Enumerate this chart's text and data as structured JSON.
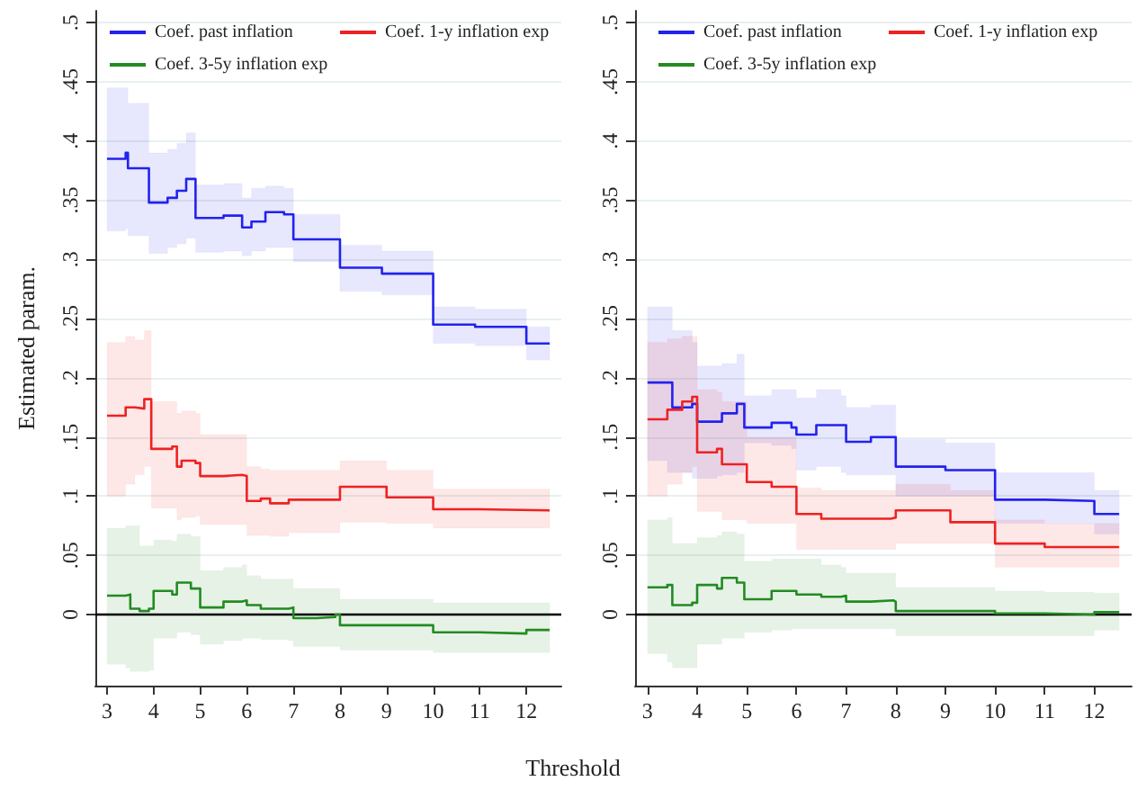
{
  "chart_data": [
    {
      "type": "step",
      "xlabel": "Threshold",
      "ylabel": "Estimated param.",
      "xlim": [
        2.75,
        12.75
      ],
      "ylim": [
        -0.06,
        0.51
      ],
      "xticks": [
        3,
        4,
        5,
        6,
        7,
        8,
        9,
        10,
        11,
        12
      ],
      "yticks": [
        0,
        {
          "value": 0.05,
          "label": ".05"
        },
        {
          "value": 0.1,
          "label": ".1"
        },
        {
          "value": 0.15,
          "label": ".15"
        },
        {
          "value": 0.2,
          "label": ".2"
        },
        {
          "value": 0.25,
          "label": ".25"
        },
        {
          "value": 0.3,
          "label": ".3"
        },
        {
          "value": 0.35,
          "label": ".35"
        },
        {
          "value": 0.4,
          "label": ".4"
        },
        {
          "value": 0.45,
          "label": ".45"
        },
        {
          "value": 0.5,
          "label": ".5"
        }
      ],
      "grid": "y",
      "legend": "top",
      "marker": "none",
      "ref_lines": [
        {
          "axis": "y",
          "value": 0,
          "color": "#000000"
        }
      ],
      "series": [
        {
          "name": "Coef. past inflation",
          "color": "#2222ee",
          "x": [
            3,
            3.4,
            3.45,
            3.8,
            3.9,
            4.3,
            4.5,
            4.7,
            4.9,
            5.5,
            5.9,
            6.1,
            6.4,
            6.8,
            7,
            8,
            8.9,
            10,
            10.9,
            12,
            12.5
          ],
          "values": [
            0.385,
            0.39,
            0.377,
            0.377,
            0.348,
            0.352,
            0.358,
            0.368,
            0.335,
            0.337,
            0.327,
            0.332,
            0.34,
            0.338,
            0.317,
            0.293,
            0.288,
            0.245,
            0.243,
            0.229,
            0.229
          ],
          "lower": [
            0.324,
            0.326,
            0.32,
            0.32,
            0.305,
            0.31,
            0.313,
            0.318,
            0.306,
            0.307,
            0.303,
            0.307,
            0.31,
            0.31,
            0.298,
            0.273,
            0.27,
            0.229,
            0.227,
            0.215,
            0.215
          ],
          "upper": [
            0.445,
            0.445,
            0.432,
            0.432,
            0.39,
            0.393,
            0.398,
            0.407,
            0.363,
            0.364,
            0.352,
            0.36,
            0.362,
            0.36,
            0.338,
            0.312,
            0.307,
            0.26,
            0.258,
            0.243,
            0.243
          ]
        },
        {
          "name": "Coef. 1-y inflation exp",
          "color": "#ee2222",
          "x": [
            3,
            3.4,
            3.6,
            3.8,
            3.95,
            4.4,
            4.5,
            4.6,
            4.9,
            5,
            5.5,
            5.9,
            6,
            6.3,
            6.5,
            6.9,
            8,
            8.9,
            9,
            10,
            11,
            12.5
          ],
          "values": [
            0.168,
            0.175,
            0.174,
            0.182,
            0.14,
            0.142,
            0.125,
            0.13,
            0.128,
            0.117,
            0.118,
            0.117,
            0.096,
            0.098,
            0.094,
            0.097,
            0.108,
            0.108,
            0.099,
            0.089,
            0.088,
            0.089
          ],
          "lower": [
            0.1,
            0.11,
            0.118,
            0.125,
            0.09,
            0.09,
            0.08,
            0.082,
            0.083,
            0.076,
            0.076,
            0.076,
            0.067,
            0.067,
            0.066,
            0.069,
            0.078,
            0.078,
            0.077,
            0.073,
            0.073,
            0.073
          ],
          "upper": [
            0.23,
            0.235,
            0.232,
            0.24,
            0.18,
            0.18,
            0.17,
            0.172,
            0.17,
            0.152,
            0.152,
            0.152,
            0.125,
            0.123,
            0.122,
            0.122,
            0.13,
            0.13,
            0.122,
            0.106,
            0.106,
            0.106
          ]
        },
        {
          "name": "Coef. 3-5y inflation exp",
          "color": "#228b22",
          "x": [
            3,
            3.4,
            3.5,
            3.7,
            3.9,
            4,
            4.4,
            4.5,
            4.8,
            5,
            5.5,
            5.9,
            6,
            6.3,
            6.9,
            7,
            7.5,
            7.9,
            8,
            10,
            11,
            12,
            12.5
          ],
          "values": [
            0.016,
            0.017,
            0.005,
            0.003,
            0.005,
            0.02,
            0.017,
            0.027,
            0.022,
            0.006,
            0.011,
            0.012,
            0.008,
            0.005,
            0.006,
            -0.003,
            -0.002,
            0,
            -0.009,
            -0.015,
            -0.016,
            -0.013,
            -0.013
          ],
          "lower": [
            -0.042,
            -0.045,
            -0.048,
            -0.048,
            -0.047,
            -0.02,
            -0.02,
            -0.015,
            -0.017,
            -0.025,
            -0.022,
            -0.02,
            -0.02,
            -0.021,
            -0.022,
            -0.027,
            -0.027,
            -0.027,
            -0.03,
            -0.032,
            -0.032,
            -0.032,
            -0.032
          ],
          "upper": [
            0.073,
            0.075,
            0.075,
            0.058,
            0.058,
            0.063,
            0.062,
            0.068,
            0.066,
            0.037,
            0.04,
            0.042,
            0.033,
            0.03,
            0.03,
            0.022,
            0.022,
            0.022,
            0.013,
            0.01,
            0.01,
            0.01,
            0.01
          ]
        }
      ]
    },
    {
      "type": "step",
      "xlim": [
        2.75,
        12.75
      ],
      "ylim": [
        -0.06,
        0.51
      ],
      "xticks": [
        3,
        4,
        5,
        6,
        7,
        8,
        9,
        10,
        11,
        12
      ],
      "yticks": [
        0,
        {
          "value": 0.05,
          "label": ".05"
        },
        {
          "value": 0.1,
          "label": ".1"
        },
        {
          "value": 0.15,
          "label": ".15"
        },
        {
          "value": 0.2,
          "label": ".2"
        },
        {
          "value": 0.25,
          "label": ".25"
        },
        {
          "value": 0.3,
          "label": ".3"
        },
        {
          "value": 0.35,
          "label": ".35"
        },
        {
          "value": 0.4,
          "label": ".4"
        },
        {
          "value": 0.45,
          "label": ".45"
        },
        {
          "value": 0.5,
          "label": ".5"
        }
      ],
      "grid": "y",
      "legend": "top",
      "marker": "none",
      "ref_lines": [
        {
          "axis": "y",
          "value": 0,
          "color": "#000000"
        }
      ],
      "series": [
        {
          "name": "Coef. past inflation",
          "color": "#2222ee",
          "x": [
            3,
            3.4,
            3.5,
            3.9,
            4,
            4.4,
            4.5,
            4.8,
            4.95,
            5.5,
            5.9,
            6,
            6.4,
            6.9,
            7,
            7.5,
            7.95,
            8,
            9,
            10,
            11,
            12,
            12.5
          ],
          "values": [
            0.196,
            0.196,
            0.175,
            0.178,
            0.163,
            0.163,
            0.17,
            0.178,
            0.158,
            0.162,
            0.158,
            0.152,
            0.16,
            0.16,
            0.146,
            0.15,
            0.15,
            0.125,
            0.122,
            0.097,
            0.096,
            0.085,
            0.084
          ],
          "lower": [
            0.13,
            0.12,
            0.12,
            0.115,
            0.115,
            0.117,
            0.118,
            0.12,
            0.145,
            0.143,
            0.14,
            0.122,
            0.125,
            0.12,
            0.118,
            0.118,
            0.118,
            0.1,
            0.1,
            0.077,
            0.077,
            0.068,
            0.068
          ],
          "upper": [
            0.26,
            0.26,
            0.24,
            0.23,
            0.21,
            0.21,
            0.212,
            0.22,
            0.185,
            0.19,
            0.19,
            0.183,
            0.19,
            0.185,
            0.175,
            0.177,
            0.177,
            0.148,
            0.145,
            0.12,
            0.12,
            0.105,
            0.103
          ]
        },
        {
          "name": "Coef. 1-y inflation exp",
          "color": "#ee2222",
          "x": [
            3,
            3.4,
            3.7,
            3.9,
            4,
            4.4,
            4.5,
            4.9,
            5,
            5.5,
            5.9,
            6,
            6.5,
            7,
            7.9,
            8,
            9,
            9.1,
            10,
            11,
            12.5
          ],
          "values": [
            0.165,
            0.173,
            0.18,
            0.184,
            0.137,
            0.14,
            0.127,
            0.127,
            0.112,
            0.108,
            0.108,
            0.085,
            0.081,
            0.081,
            0.082,
            0.088,
            0.088,
            0.078,
            0.06,
            0.057,
            0.057
          ],
          "lower": [
            0.1,
            0.11,
            0.12,
            0.125,
            0.087,
            0.087,
            0.08,
            0.08,
            0.077,
            0.077,
            0.077,
            0.055,
            0.055,
            0.055,
            0.055,
            0.06,
            0.06,
            0.06,
            0.04,
            0.04,
            0.04
          ],
          "upper": [
            0.23,
            0.233,
            0.235,
            0.235,
            0.19,
            0.188,
            0.18,
            0.18,
            0.15,
            0.15,
            0.15,
            0.107,
            0.105,
            0.105,
            0.105,
            0.11,
            0.11,
            0.105,
            0.08,
            0.077,
            0.075
          ]
        },
        {
          "name": "Coef. 3-5y inflation exp",
          "color": "#228b22",
          "x": [
            3,
            3.4,
            3.5,
            3.9,
            4,
            4.4,
            4.5,
            4.8,
            4.95,
            5.5,
            5.9,
            6,
            6.5,
            6.9,
            7,
            7.5,
            7.95,
            8,
            10,
            11,
            12,
            12.5
          ],
          "values": [
            0.023,
            0.025,
            0.008,
            0.01,
            0.025,
            0.022,
            0.031,
            0.027,
            0.013,
            0.02,
            0.02,
            0.017,
            0.015,
            0.016,
            0.011,
            0.012,
            0.011,
            0.003,
            0.001,
            0,
            0.002,
            0.002
          ],
          "lower": [
            -0.033,
            -0.04,
            -0.045,
            -0.045,
            -0.025,
            -0.025,
            -0.02,
            -0.02,
            -0.015,
            -0.013,
            -0.012,
            -0.012,
            -0.012,
            -0.012,
            -0.012,
            -0.012,
            -0.012,
            -0.018,
            -0.018,
            -0.018,
            -0.013,
            -0.013
          ],
          "upper": [
            0.08,
            0.082,
            0.06,
            0.06,
            0.065,
            0.067,
            0.07,
            0.068,
            0.045,
            0.047,
            0.047,
            0.047,
            0.042,
            0.04,
            0.035,
            0.035,
            0.035,
            0.023,
            0.02,
            0.019,
            0.018,
            0.018
          ]
        }
      ]
    }
  ]
}
